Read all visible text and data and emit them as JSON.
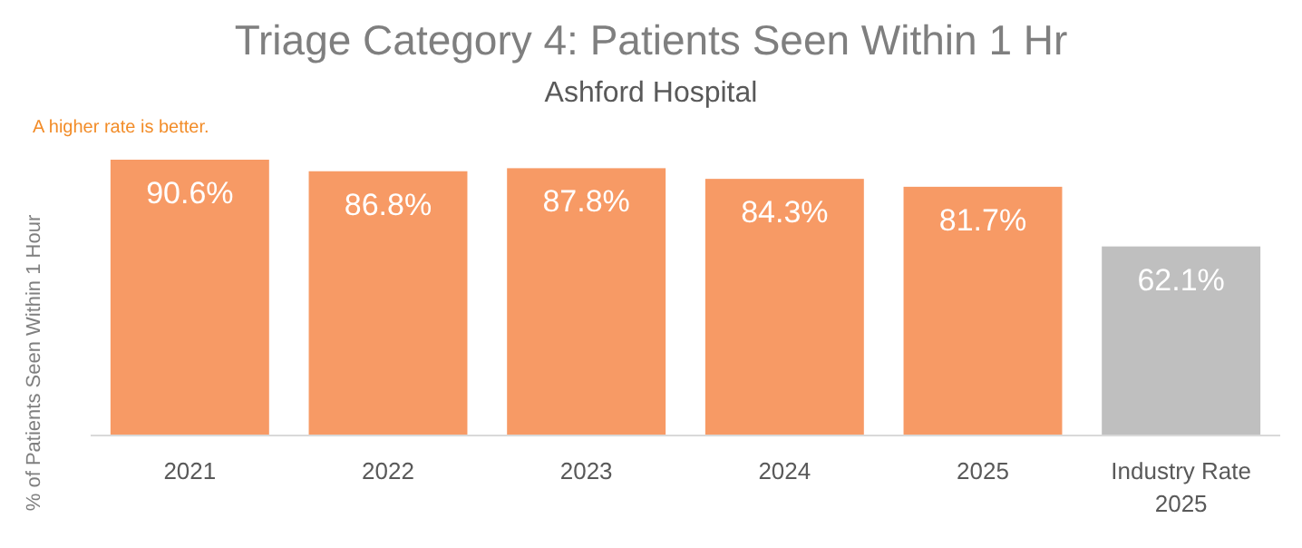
{
  "chart_data": {
    "type": "bar",
    "title": "Triage Category 4: Patients Seen Within 1 Hr",
    "subtitle": "Ashford Hospital",
    "ylabel": "% of Patients Seen Within 1 Hour",
    "annotations": [
      "A higher rate is better."
    ],
    "categories": [
      "2021",
      "2022",
      "2023",
      "2024",
      "2025",
      "Industry Rate 2025"
    ],
    "values": [
      90.6,
      86.8,
      87.8,
      84.3,
      81.7,
      62.1
    ],
    "value_labels": [
      "90.6%",
      "86.8%",
      "87.8%",
      "84.3%",
      "81.7%",
      "62.1%"
    ],
    "colors": [
      "#f79a65",
      "#f79a65",
      "#f79a65",
      "#f79a65",
      "#f79a65",
      "#bfbfbf"
    ],
    "orientation": "vertical"
  }
}
